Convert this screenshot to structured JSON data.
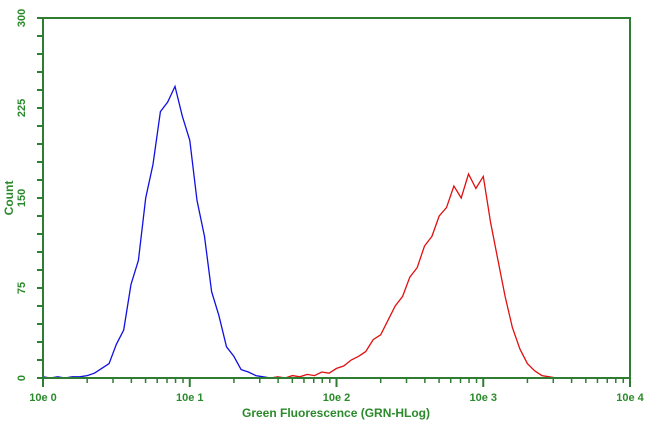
{
  "chart_data": {
    "type": "line",
    "title": "",
    "xlabel": "Green Fluorescence (GRN-HLog)",
    "ylabel": "Count",
    "xscale": "log",
    "xlim": [
      1,
      10000
    ],
    "ylim": [
      0,
      300
    ],
    "x_tick_labels": [
      "10e 0",
      "10e 1",
      "10e 2",
      "10e 3",
      "10e 4"
    ],
    "x_tick_values": [
      1,
      10,
      100,
      1000,
      10000
    ],
    "y_tick_labels": [
      "0",
      "75",
      "150",
      "225",
      "300"
    ],
    "y_tick_values": [
      0,
      75,
      150,
      225,
      300
    ],
    "grid": false,
    "axis_color": "#2e7d32",
    "series": [
      {
        "color": "#1010e0",
        "x": [
          1,
          1.12,
          1.26,
          1.41,
          1.58,
          1.78,
          2,
          2.24,
          2.51,
          2.82,
          3.16,
          3.55,
          3.98,
          4.47,
          5.01,
          5.62,
          6.31,
          7.08,
          7.94,
          8.91,
          10,
          11.2,
          12.6,
          14.1,
          15.8,
          17.8,
          20,
          22.4,
          25.1,
          28.2,
          31.6,
          35.5,
          39.8
        ],
        "y": [
          1,
          0,
          1,
          0,
          1,
          1,
          2,
          4,
          8,
          12,
          28,
          40,
          78,
          98,
          150,
          178,
          222,
          230,
          243,
          218,
          198,
          148,
          118,
          72,
          52,
          26,
          18,
          7,
          5,
          2,
          1,
          0,
          0
        ]
      },
      {
        "color": "#e01010",
        "x": [
          31.6,
          35.5,
          39.8,
          44.7,
          50.1,
          56.2,
          63.1,
          70.8,
          79.4,
          89.1,
          100,
          112,
          126,
          141,
          158,
          178,
          200,
          224,
          251,
          282,
          316,
          355,
          398,
          447,
          501,
          562,
          631,
          708,
          794,
          891,
          1000,
          1120,
          1260,
          1410,
          1580,
          1780,
          2000,
          2240,
          2510,
          2820,
          3160
        ],
        "y": [
          0,
          0,
          1,
          0,
          2,
          1,
          3,
          2,
          5,
          4,
          8,
          10,
          15,
          18,
          22,
          32,
          36,
          48,
          60,
          68,
          84,
          92,
          110,
          118,
          135,
          142,
          160,
          150,
          170,
          158,
          168,
          130,
          98,
          68,
          42,
          24,
          12,
          6,
          2,
          1,
          0
        ]
      }
    ]
  }
}
